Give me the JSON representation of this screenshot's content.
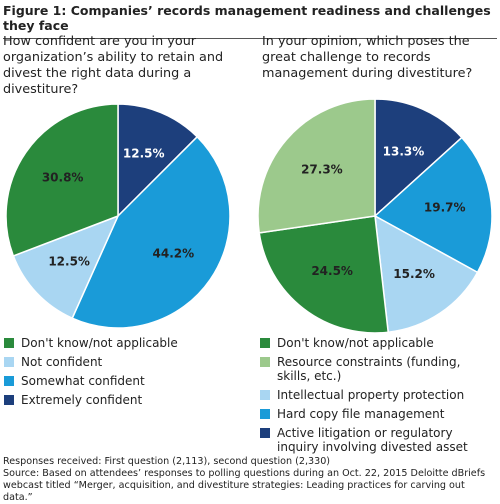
{
  "title": "Figure 1: Companies’ records management readiness and challenges they face",
  "notes": [
    "Responses received: First question (2,113), second question (2,330)",
    "Source: Based on attendees’ responses to polling questions during an Oct. 22, 2015 Deloitte dBriefs webcast titled “Merger, acquisition, and divestiture strategies: Leading practices for carving out data.”"
  ],
  "chart_data": [
    {
      "type": "pie",
      "title": "How confident are you in your organization’s ability to retain and divest the right data during a divestiture?",
      "categories": [
        "Don't know/not applicable",
        "Not confident",
        "Somewhat confident",
        "Extremely confident"
      ],
      "values": [
        30.8,
        12.5,
        44.2,
        12.5
      ],
      "value_labels": [
        "30.8%",
        "12.5%",
        "44.2%",
        "12.5%"
      ],
      "colors": [
        "#2a8a3c",
        "#a9d6f2",
        "#1a9bd8",
        "#1d3f7c"
      ]
    },
    {
      "type": "pie",
      "title": "In your opinion, which poses the great challenge to records management during divestiture?",
      "categories": [
        "Don't know/not applicable",
        "Resource constraints (funding, skills, etc.)",
        "Intellectual property protection",
        "Hard copy file management",
        "Active litigation or regulatory inquiry involving divested asset"
      ],
      "values": [
        24.5,
        27.3,
        15.2,
        19.7,
        13.3
      ],
      "value_labels": [
        "24.5%",
        "27.3%",
        "15.2%",
        "19.7%",
        "13.3%"
      ],
      "colors": [
        "#2a8a3c",
        "#9cc98c",
        "#a9d6f2",
        "#1a9bd8",
        "#1d3f7c"
      ]
    }
  ]
}
